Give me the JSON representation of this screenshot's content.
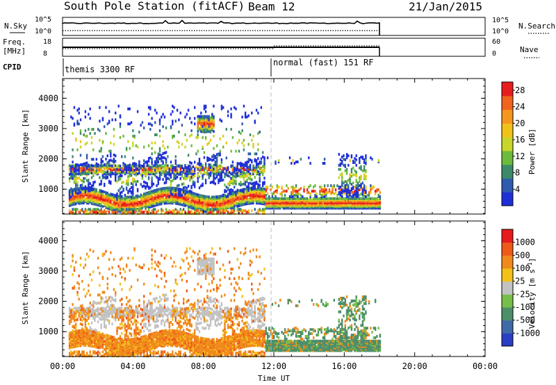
{
  "header": {
    "station": "South Pole Station (fitACF)",
    "beam": "Beam 12",
    "date": "21/Jan/2015"
  },
  "strip": {
    "nsky_label": "N.Sky",
    "nsky_ticks": [
      "10^5",
      "10^0"
    ],
    "nsearch_label": "N.Search",
    "nsearch_ticks": [
      "10^5",
      "10^0"
    ],
    "freq_label_1": "Freq.",
    "freq_label_2": "[MHz]",
    "freq_ticks": [
      "18",
      "8"
    ],
    "nave_label": "Nave",
    "nave_ticks": [
      "60",
      "0"
    ],
    "cpid_label": "CPID"
  },
  "cpid_segments": [
    {
      "label": "themis 3300 RF",
      "start_hour": 0,
      "end_hour": 12
    },
    {
      "label": "normal (fast) 151 RF",
      "start_hour": 12,
      "end_hour": 18
    }
  ],
  "x_axis": {
    "label": "Time UT",
    "ticks": [
      "00:00",
      "04:00",
      "08:00",
      "12:00",
      "16:00",
      "20:00",
      "00:00"
    ],
    "range_hours": [
      0,
      24
    ],
    "data_end_hour": 18
  },
  "colors": {
    "power_scale": [
      "#1f2fd8",
      "#2e5bb0",
      "#3d8a6a",
      "#6dbb3c",
      "#c8d62a",
      "#f2c21a",
      "#f5961d",
      "#f0641e",
      "#e81e1e"
    ],
    "velocity_scale": [
      "#2a3fc4",
      "#3f6aa8",
      "#4d8f6a",
      "#76c04a",
      "#c2c2c2",
      "#f3c11a",
      "#f08a1c",
      "#ef5a1a",
      "#e61b1b"
    ]
  },
  "chart_data": [
    {
      "type": "heatmap",
      "name": "Power",
      "ylabel": "Slant Range [km]",
      "yticks": [
        "1000",
        "2000",
        "3000",
        "4000"
      ],
      "ylim": [
        180,
        4650
      ],
      "colorbar_label": "Power [dB]",
      "colorbar_ticks": [
        "4",
        "8",
        "12",
        "16",
        "20",
        "24",
        "28"
      ],
      "colorbar_range": [
        0,
        30
      ]
    },
    {
      "type": "heatmap",
      "name": "Velocity",
      "ylabel": "Slant Range [km]",
      "yticks": [
        "1000",
        "2000",
        "3000",
        "4000"
      ],
      "ylim": [
        180,
        4650
      ],
      "colorbar_label": "Velocity [m s^-1]",
      "colorbar_ticks": [
        "1000",
        "500",
        "100",
        "25",
        "-25",
        "-100",
        "-500",
        "-1000"
      ]
    }
  ]
}
